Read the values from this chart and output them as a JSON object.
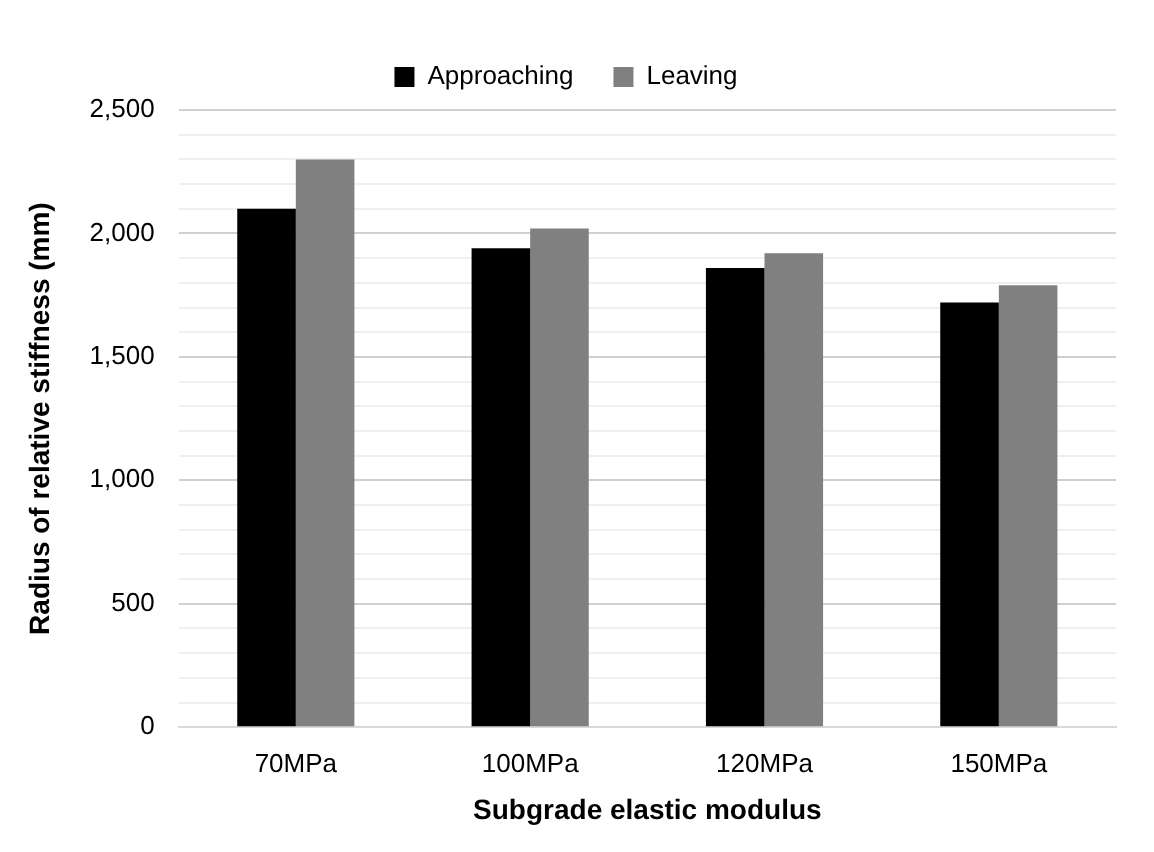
{
  "chart_data": {
    "type": "bar",
    "xlabel": "Subgrade elastic modulus",
    "ylabel": "Radius of relative stiffness (mm)",
    "categories": [
      "70MPa",
      "100MPa",
      "120MPa",
      "150MPa"
    ],
    "series": [
      {
        "name": "Approaching",
        "color": "#000000",
        "values": [
          2100,
          1940,
          1860,
          1720
        ]
      },
      {
        "name": "Leaving",
        "color": "#808080",
        "values": [
          2300,
          2020,
          1920,
          1790
        ]
      }
    ],
    "ylim": [
      0,
      2500
    ],
    "yticks": [
      0,
      {
        "value": 100,
        "label": null
      },
      {
        "value": 200,
        "label": null
      },
      {
        "value": 300,
        "label": null
      },
      {
        "value": 400,
        "label": null
      },
      {
        "value": 500,
        "label": "500"
      },
      {
        "value": 600,
        "label": null
      },
      {
        "value": 700,
        "label": null
      },
      {
        "value": 800,
        "label": null
      },
      {
        "value": 900,
        "label": null
      },
      {
        "value": 1000,
        "label": "1,000"
      },
      {
        "value": 1100,
        "label": null
      },
      {
        "value": 1200,
        "label": null
      },
      {
        "value": 1300,
        "label": null
      },
      {
        "value": 1400,
        "label": null
      },
      {
        "value": 1500,
        "label": "1,500"
      },
      {
        "value": 1600,
        "label": null
      },
      {
        "value": 1700,
        "label": null
      },
      {
        "value": 1800,
        "label": null
      },
      {
        "value": 1900,
        "label": null
      },
      {
        "value": 2000,
        "label": "2,000"
      },
      {
        "value": 2100,
        "label": null
      },
      {
        "value": 2200,
        "label": null
      },
      {
        "value": 2300,
        "label": null
      },
      {
        "value": 2400,
        "label": null
      },
      {
        "value": 2500,
        "label": "2,500"
      }
    ],
    "grid": "y",
    "legend": "top"
  }
}
